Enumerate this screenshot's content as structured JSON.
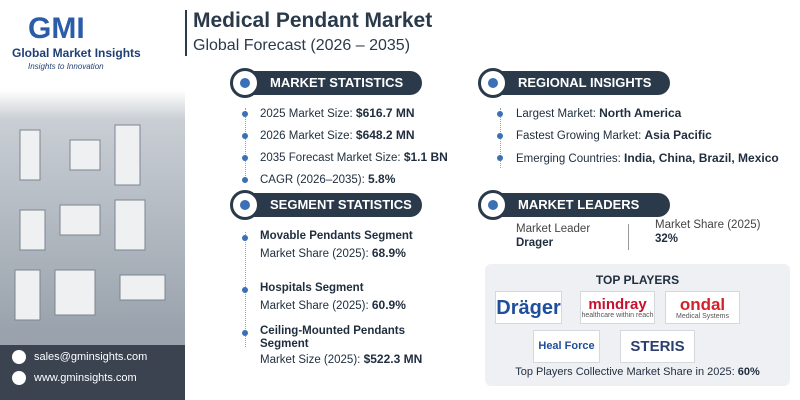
{
  "header": {
    "logo": "GMI",
    "brand": "Global Market Insights",
    "tagline": "Insights to Innovation",
    "title": "Medical Pendant Market",
    "subtitle": "Global Forecast (2026 – 2035)"
  },
  "market_statistics": {
    "heading": "MARKET STATISTICS",
    "items": [
      {
        "label": "2025 Market Size:",
        "value": "$616.7 MN"
      },
      {
        "label": "2026 Market Size:",
        "value": "$648.2 MN"
      },
      {
        "label": "2035 Forecast Market Size:",
        "value": "$1.1 BN"
      },
      {
        "label": "CAGR (2026–2035):",
        "value": "5.8%"
      }
    ]
  },
  "regional_insights": {
    "heading": "REGIONAL INSIGHTS",
    "items": [
      {
        "label": "Largest Market:",
        "value": "North America"
      },
      {
        "label": "Fastest Growing Market:",
        "value": "Asia Pacific"
      },
      {
        "label": "Emerging Countries:",
        "value": "India, China, Brazil, Mexico"
      }
    ]
  },
  "segment_statistics": {
    "heading": "SEGMENT STATISTICS",
    "items": [
      {
        "name": "Movable Pendants Segment",
        "label": "Market Share (2025):",
        "value": "68.9%"
      },
      {
        "name": "Hospitals Segment",
        "label": "Market Share (2025):",
        "value": "60.9%"
      },
      {
        "name": "Ceiling-Mounted Pendants Segment",
        "label": "Market Size (2025):",
        "value": "$522.3 MN"
      }
    ]
  },
  "market_leaders": {
    "heading": "MARKET LEADERS",
    "leader_label": "Market Leader",
    "leader": "Drager",
    "share_label": "Market Share (2025)",
    "share": "32%"
  },
  "top_players": {
    "heading": "TOP PLAYERS",
    "players": [
      {
        "name": "Dräger"
      },
      {
        "name": "mindray",
        "tagline": "healthcare within reach"
      },
      {
        "name": "ondal",
        "tagline": "Medical Systems"
      },
      {
        "name": "Heal Force"
      },
      {
        "name": "STERIS"
      }
    ],
    "footer_label": "Top Players Collective Market Share in 2025:",
    "footer_value": "60%"
  },
  "contact": {
    "email": "sales@gminsights.com",
    "website": "www.gminsights.com"
  }
}
